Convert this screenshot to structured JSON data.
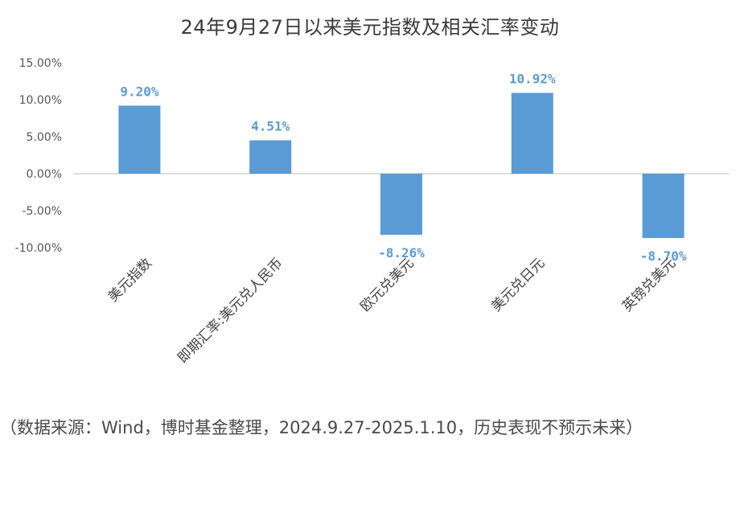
{
  "chart_data": {
    "type": "bar",
    "title": "24年9月27日以来美元指数及相关汇率变动",
    "categories": [
      "美元指数",
      "即期汇率:美元兑人民币",
      "欧元兑美元",
      "美元兑日元",
      "英镑兑美元"
    ],
    "values": [
      9.2,
      4.51,
      -8.26,
      10.92,
      -8.7
    ],
    "data_labels": [
      "9.20%",
      "4.51%",
      "-8.26%",
      "10.92%",
      "-8.70%"
    ],
    "y_ticks": [
      15,
      10,
      5,
      0,
      -5,
      -10
    ],
    "y_tick_labels": [
      "15.00%",
      "10.00%",
      "5.00%",
      "0.00%",
      "-5.00%",
      "-10.00%"
    ],
    "ylim": [
      -10,
      15
    ],
    "grid": false,
    "legend": "none",
    "bar_color": "#5b9bd5",
    "label_color": "#5b9bd5",
    "xlabel": "",
    "ylabel": ""
  },
  "footnote": "（数据来源：Wind，博时基金整理，2024.9.27-2025.1.10，历史表现不预示未来）"
}
